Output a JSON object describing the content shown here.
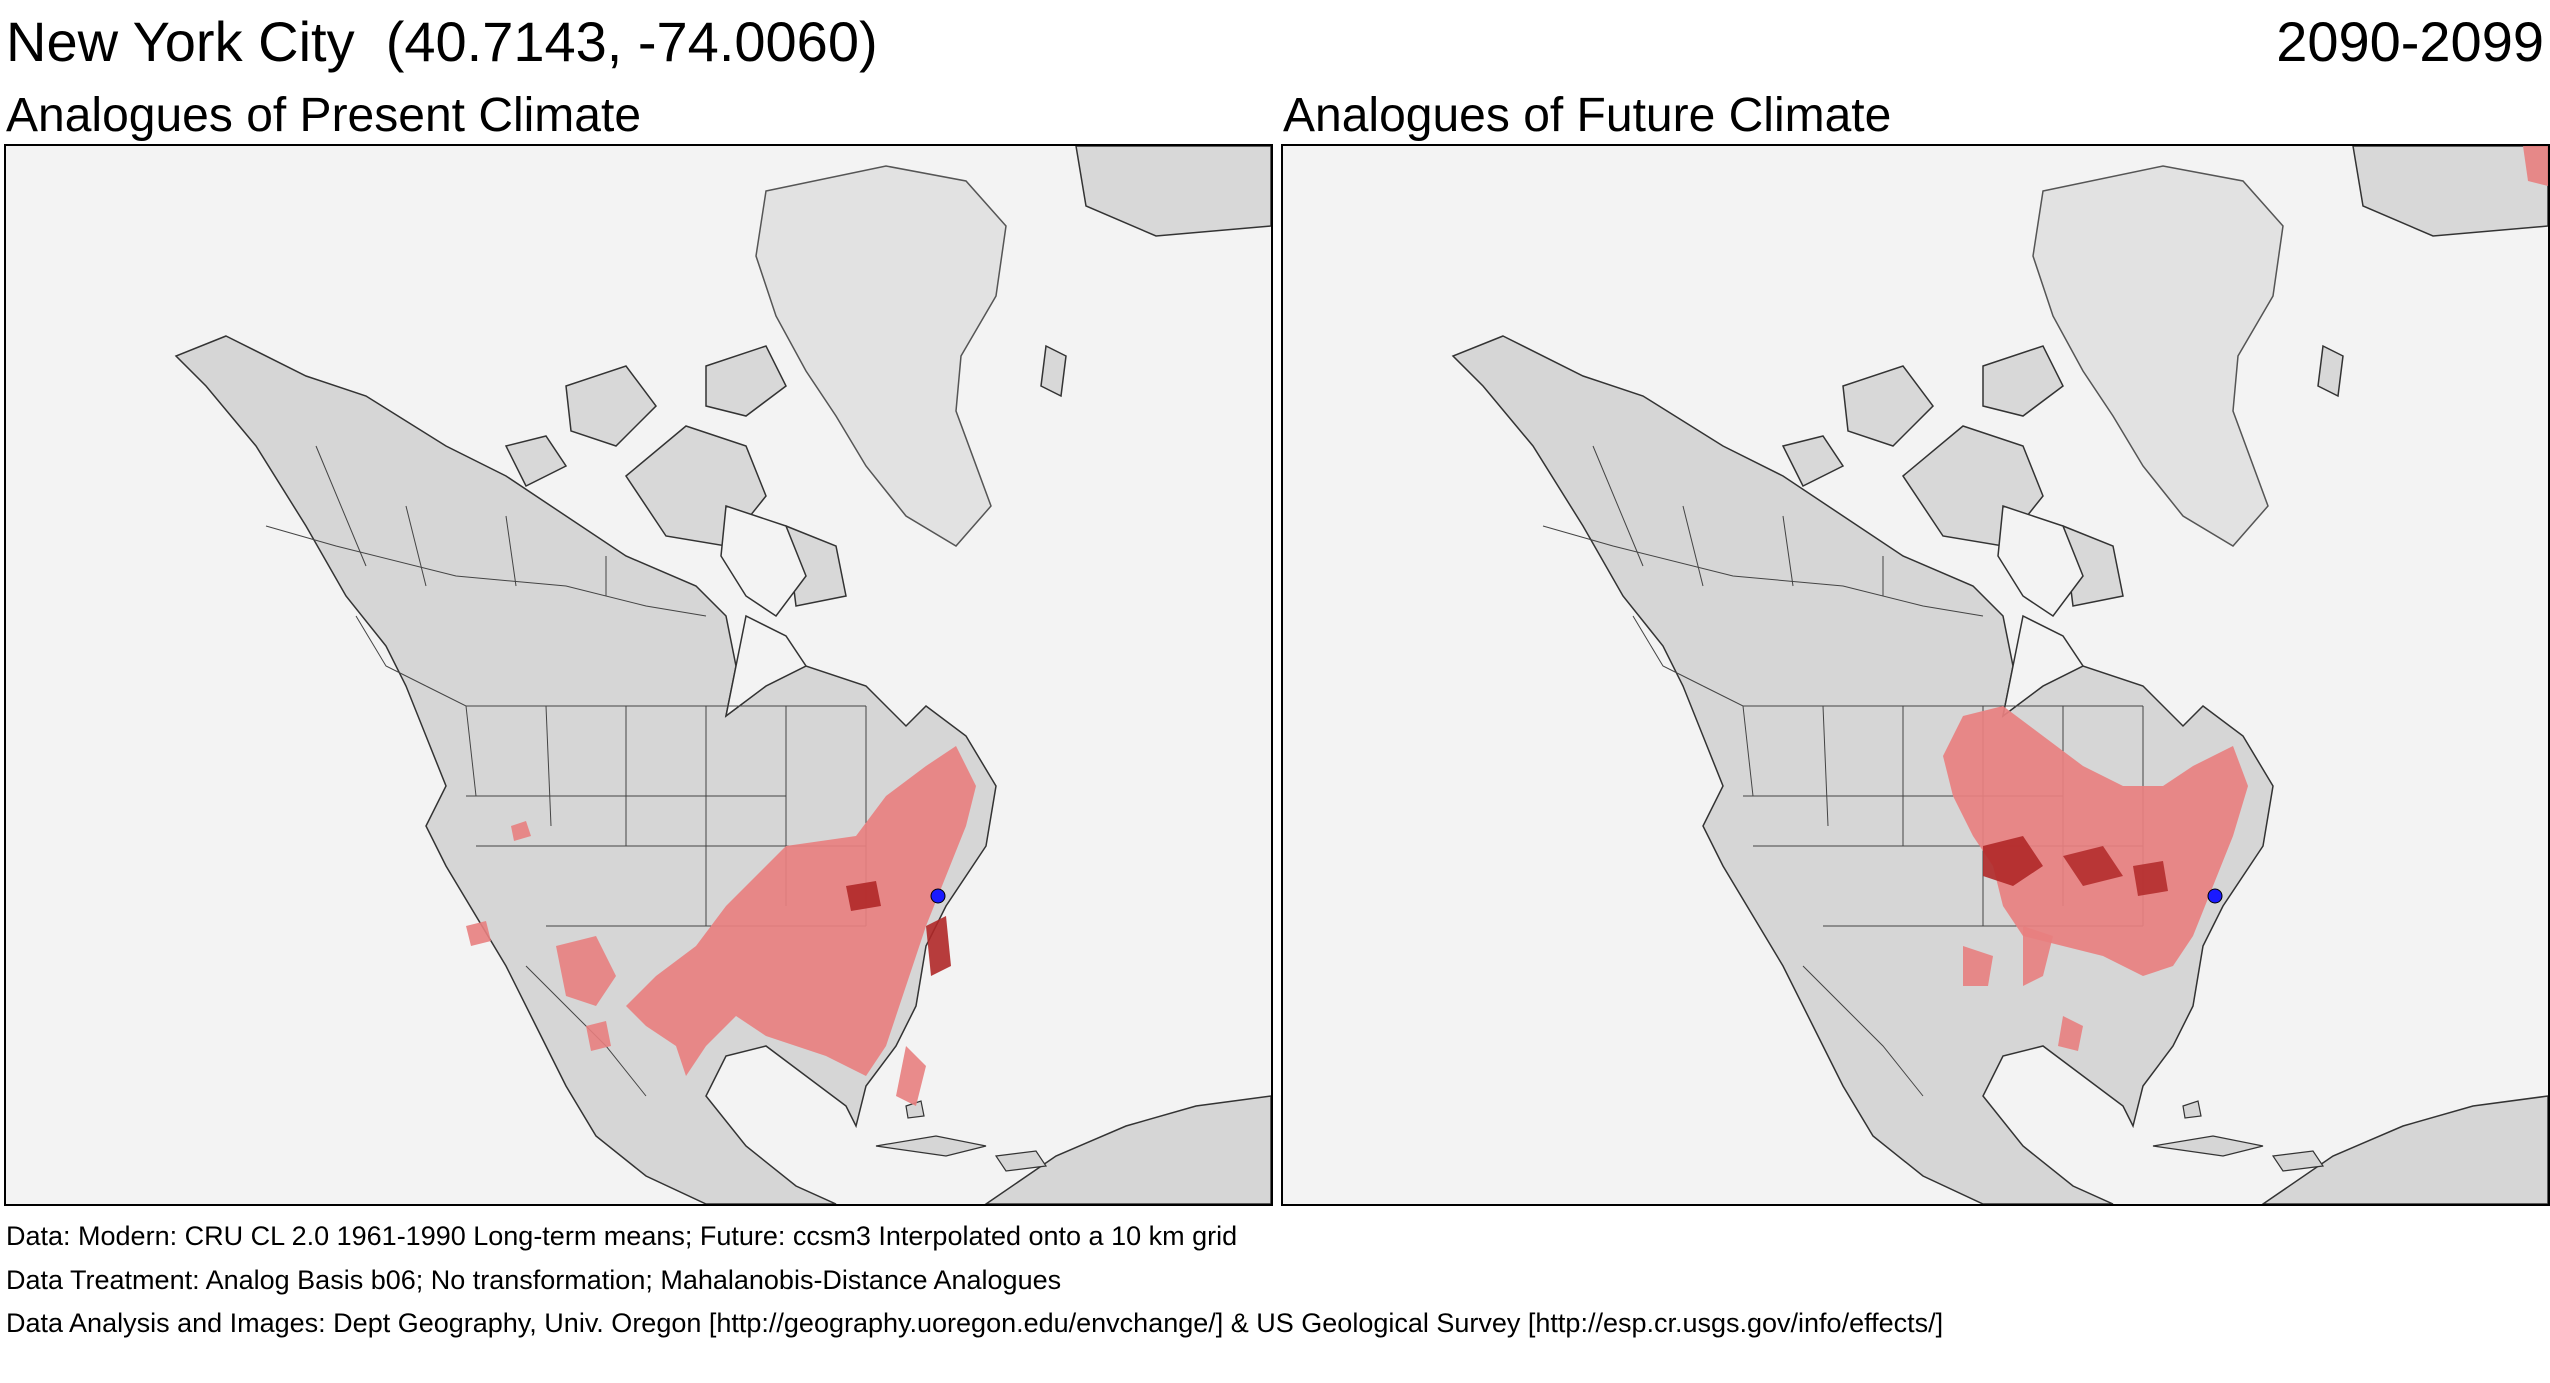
{
  "header": {
    "title": "New York City  (40.7143, -74.0060)",
    "period": "2090-2099"
  },
  "panels": {
    "left": {
      "title": "Analogues of Present Climate"
    },
    "right": {
      "title": "Analogues of Future Climate"
    }
  },
  "footer": {
    "line1": "Data:  Modern: CRU CL 2.0 1961-1990 Long-term means; Future: ccsm3 Interpolated onto a 10 km grid",
    "line2": "Data Treatment:  Analog Basis b06; No transformation; Mahalanobis-Distance Analogues",
    "line3": "Data Analysis and Images:  Dept Geography, Univ. Oregon [http://geography.uoregon.edu/envchange/] & US Geological Survey [http://esp.cr.usgs.gov/info/effects/]"
  },
  "colors": {
    "ocean": "#f3f3f3",
    "land": "#d6d6d6",
    "analogue": "#e88080",
    "analogue_strong": "#b02828",
    "site_marker": "#1a1aff"
  },
  "legend": {}
}
